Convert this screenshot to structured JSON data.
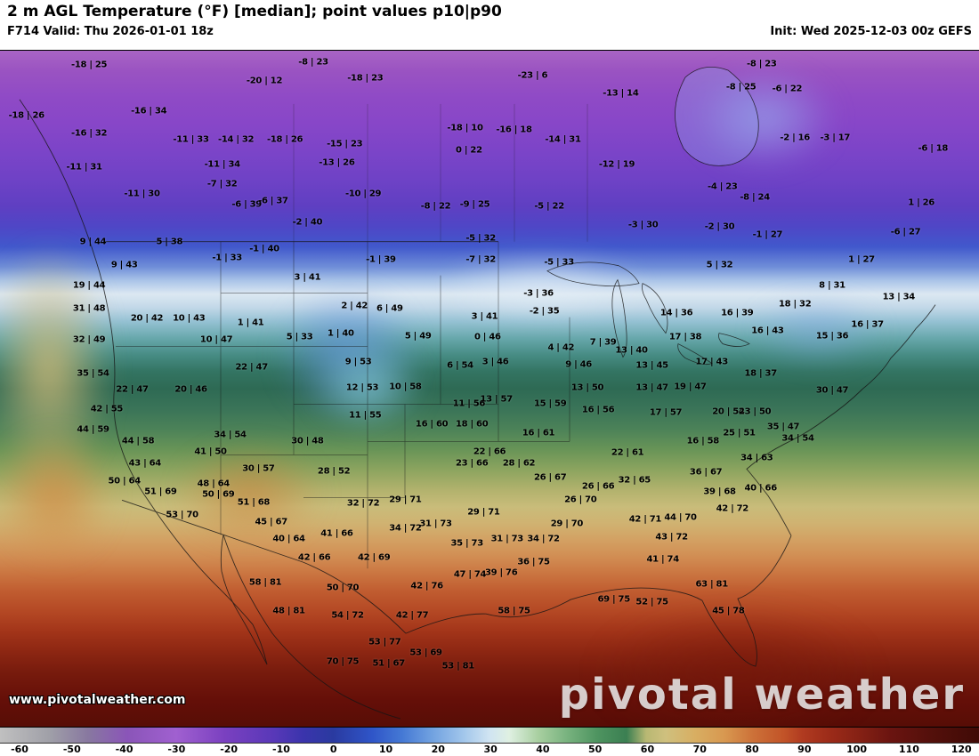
{
  "header": {
    "title": "2 m AGL Temperature (°F) [median]; point values p10|p90",
    "valid_label": "F714 Valid: Thu 2026-01-01 18z",
    "init_label": "Init: Wed 2025-12-03 00z GEFS"
  },
  "watermark": {
    "site_url": "www.pivotalweather.com",
    "brand": "pivotal weather"
  },
  "colorbar": {
    "units": "°F",
    "ticks": [
      "-60",
      "-50",
      "-40",
      "-30",
      "-20",
      "-10",
      "0",
      "10",
      "20",
      "30",
      "40",
      "50",
      "60",
      "70",
      "80",
      "90",
      "100",
      "110",
      "120"
    ],
    "stops": [
      {
        "p": 0,
        "c": "#c0c0c0"
      },
      {
        "p": 5,
        "c": "#a0a0a8"
      },
      {
        "p": 9,
        "c": "#8878a0"
      },
      {
        "p": 13,
        "c": "#8a55b8"
      },
      {
        "p": 18,
        "c": "#a060d0"
      },
      {
        "p": 23,
        "c": "#7a40c0"
      },
      {
        "p": 28,
        "c": "#5838b8"
      },
      {
        "p": 31,
        "c": "#3a34ac"
      },
      {
        "p": 34,
        "c": "#2a3aa0"
      },
      {
        "p": 38,
        "c": "#2f55c8"
      },
      {
        "p": 41,
        "c": "#4478d4"
      },
      {
        "p": 44,
        "c": "#6fa0e0"
      },
      {
        "p": 47,
        "c": "#9cc2ea"
      },
      {
        "p": 50,
        "c": "#d0e4f2"
      },
      {
        "p": 52,
        "c": "#dff0e2"
      },
      {
        "p": 55,
        "c": "#a8cfa0"
      },
      {
        "p": 58,
        "c": "#77b27e"
      },
      {
        "p": 61,
        "c": "#4e9460"
      },
      {
        "p": 64,
        "c": "#3b7f52"
      },
      {
        "p": 66,
        "c": "#b8b873"
      },
      {
        "p": 68,
        "c": "#cfc07e"
      },
      {
        "p": 71,
        "c": "#d8ae62"
      },
      {
        "p": 74,
        "c": "#d89850"
      },
      {
        "p": 77,
        "c": "#cc7038"
      },
      {
        "p": 80,
        "c": "#c25428"
      },
      {
        "p": 82,
        "c": "#b03a20"
      },
      {
        "p": 85,
        "c": "#9a2a18"
      },
      {
        "p": 88,
        "c": "#832014"
      },
      {
        "p": 91,
        "c": "#6a1410"
      },
      {
        "p": 95,
        "c": "#54100b"
      },
      {
        "p": 100,
        "c": "#400a06"
      }
    ]
  },
  "map": {
    "points": [
      [
        9.1,
        2.1,
        "-18 | 25"
      ],
      [
        32.0,
        1.7,
        "-8 | 23"
      ],
      [
        54.4,
        3.7,
        "-23 | 6"
      ],
      [
        77.8,
        2.0,
        "-8 | 23"
      ],
      [
        27.0,
        4.5,
        "-20 | 12"
      ],
      [
        37.3,
        4.1,
        "-18 | 23"
      ],
      [
        63.4,
        6.3,
        "-13 | 14"
      ],
      [
        75.7,
        5.4,
        "-8 | 25"
      ],
      [
        80.4,
        5.7,
        "-6 | 22"
      ],
      [
        2.7,
        9.6,
        "-18 | 26"
      ],
      [
        15.2,
        8.9,
        "-16 | 34"
      ],
      [
        9.1,
        12.2,
        "-16 | 32"
      ],
      [
        19.5,
        13.1,
        "-11 | 33"
      ],
      [
        24.1,
        13.1,
        "-14 | 32"
      ],
      [
        29.1,
        13.1,
        "-18 | 26"
      ],
      [
        35.2,
        13.8,
        "-15 | 23"
      ],
      [
        47.5,
        11.4,
        "-18 | 10"
      ],
      [
        52.5,
        11.7,
        "-16 | 18"
      ],
      [
        57.5,
        13.1,
        "-14 | 31"
      ],
      [
        47.9,
        14.8,
        "0 | 22"
      ],
      [
        81.2,
        12.9,
        "-2 | 16"
      ],
      [
        85.3,
        12.9,
        "-3 | 17"
      ],
      [
        95.3,
        14.5,
        "-6 | 18"
      ],
      [
        8.6,
        17.2,
        "-11 | 31"
      ],
      [
        22.7,
        16.8,
        "-11 | 34"
      ],
      [
        34.4,
        16.6,
        "-13 | 26"
      ],
      [
        63.0,
        16.8,
        "-12 | 19"
      ],
      [
        73.8,
        20.1,
        "-4 | 23"
      ],
      [
        14.5,
        21.2,
        "-11 | 30"
      ],
      [
        22.7,
        19.8,
        "-7 | 32"
      ],
      [
        37.1,
        21.2,
        "-10 | 29"
      ],
      [
        25.2,
        22.7,
        "-6 | 39"
      ],
      [
        27.9,
        22.3,
        "-6 | 37"
      ],
      [
        44.5,
        23.0,
        "-8 | 22"
      ],
      [
        48.5,
        22.7,
        "-9 | 25"
      ],
      [
        56.1,
        23.0,
        "-5 | 22"
      ],
      [
        77.1,
        21.7,
        "-8 | 24"
      ],
      [
        94.1,
        22.5,
        "1 | 26"
      ],
      [
        31.4,
        25.4,
        "-2 | 40"
      ],
      [
        49.1,
        27.7,
        "-5 | 32"
      ],
      [
        65.7,
        25.8,
        "-3 | 30"
      ],
      [
        73.5,
        26.0,
        "-2 | 30"
      ],
      [
        78.4,
        27.3,
        "-1 | 27"
      ],
      [
        92.5,
        26.9,
        "-6 | 27"
      ],
      [
        17.3,
        28.3,
        "5 | 38"
      ],
      [
        9.5,
        28.3,
        "9 | 44"
      ],
      [
        23.2,
        30.6,
        "-1 | 33"
      ],
      [
        27.0,
        29.4,
        "-1 | 40"
      ],
      [
        38.9,
        30.9,
        "-1 | 39"
      ],
      [
        49.1,
        30.9,
        "-7 | 32"
      ],
      [
        57.1,
        31.3,
        "-5 | 33"
      ],
      [
        73.5,
        31.7,
        "5 | 32"
      ],
      [
        88.0,
        30.9,
        "1 | 27"
      ],
      [
        12.7,
        31.7,
        "9 | 43"
      ],
      [
        9.1,
        34.8,
        "19 | 44"
      ],
      [
        31.4,
        33.6,
        "3 | 41"
      ],
      [
        55.0,
        35.9,
        "-3 | 36"
      ],
      [
        85.0,
        34.8,
        "8 | 31"
      ],
      [
        91.8,
        36.5,
        "13 | 34"
      ],
      [
        81.2,
        37.5,
        "18 | 32"
      ],
      [
        36.2,
        37.8,
        "2 | 42"
      ],
      [
        39.8,
        38.2,
        "6 | 49"
      ],
      [
        55.6,
        38.5,
        "-2 | 35"
      ],
      [
        69.1,
        38.8,
        "14 | 36"
      ],
      [
        75.3,
        38.8,
        "16 | 39"
      ],
      [
        9.1,
        38.2,
        "31 | 48"
      ],
      [
        15.0,
        39.6,
        "20 | 42"
      ],
      [
        19.3,
        39.6,
        "10 | 43"
      ],
      [
        25.6,
        40.2,
        "1 | 41"
      ],
      [
        30.6,
        42.4,
        "5 | 33"
      ],
      [
        34.8,
        41.8,
        "1 | 40"
      ],
      [
        49.5,
        39.4,
        "3 | 41"
      ],
      [
        9.1,
        42.8,
        "32 | 49"
      ],
      [
        22.1,
        42.8,
        "10 | 47"
      ],
      [
        36.6,
        46.1,
        "9 | 53"
      ],
      [
        42.7,
        42.2,
        "5 | 49"
      ],
      [
        49.8,
        42.4,
        "0 | 46"
      ],
      [
        57.3,
        44.0,
        "4 | 42"
      ],
      [
        61.6,
        43.1,
        "7 | 39"
      ],
      [
        64.5,
        44.4,
        "13 | 40"
      ],
      [
        70.0,
        42.4,
        "17 | 38"
      ],
      [
        78.4,
        41.5,
        "16 | 43"
      ],
      [
        85.0,
        42.2,
        "15 | 36"
      ],
      [
        88.6,
        40.5,
        "16 | 37"
      ],
      [
        77.7,
        47.7,
        "18 | 37"
      ],
      [
        9.5,
        47.7,
        "35 | 54"
      ],
      [
        25.7,
        46.8,
        "22 | 47"
      ],
      [
        13.5,
        50.1,
        "22 | 47"
      ],
      [
        19.5,
        50.1,
        "20 | 46"
      ],
      [
        37.0,
        49.9,
        "12 | 53"
      ],
      [
        41.4,
        49.7,
        "10 | 58"
      ],
      [
        47.0,
        46.6,
        "6 | 54"
      ],
      [
        50.6,
        46.0,
        "3 | 46"
      ],
      [
        59.1,
        46.4,
        "9 | 46"
      ],
      [
        60.0,
        49.9,
        "13 | 50"
      ],
      [
        66.6,
        46.6,
        "13 | 45"
      ],
      [
        66.6,
        49.9,
        "13 | 47"
      ],
      [
        70.5,
        49.7,
        "19 | 47"
      ],
      [
        72.7,
        46.1,
        "17 | 43"
      ],
      [
        85.0,
        50.3,
        "30 | 47"
      ],
      [
        10.9,
        53.0,
        "42 | 55"
      ],
      [
        9.5,
        56.0,
        "44 | 59"
      ],
      [
        14.1,
        57.8,
        "44 | 58"
      ],
      [
        23.5,
        56.9,
        "34 | 54"
      ],
      [
        31.4,
        57.8,
        "30 | 48"
      ],
      [
        37.3,
        53.9,
        "11 | 55"
      ],
      [
        47.9,
        52.3,
        "11 | 56"
      ],
      [
        50.7,
        51.6,
        "13 | 57"
      ],
      [
        56.2,
        52.3,
        "15 | 59"
      ],
      [
        61.1,
        53.2,
        "16 | 56"
      ],
      [
        68.0,
        53.6,
        "17 | 57"
      ],
      [
        74.4,
        53.4,
        "20 | 54"
      ],
      [
        77.1,
        53.4,
        "23 | 50"
      ],
      [
        75.5,
        56.6,
        "25 | 51"
      ],
      [
        81.5,
        57.4,
        "34 | 54"
      ],
      [
        80.0,
        55.6,
        "35 | 47"
      ],
      [
        44.1,
        55.3,
        "16 | 60"
      ],
      [
        48.2,
        55.3,
        "18 | 60"
      ],
      [
        55.0,
        56.6,
        "16 | 61"
      ],
      [
        14.8,
        61.1,
        "43 | 64"
      ],
      [
        21.5,
        59.3,
        "41 | 50"
      ],
      [
        26.4,
        61.8,
        "30 | 57"
      ],
      [
        34.1,
        62.2,
        "28 | 52"
      ],
      [
        50.0,
        59.3,
        "22 | 66"
      ],
      [
        48.2,
        61.1,
        "23 | 66"
      ],
      [
        53.0,
        61.1,
        "28 | 62"
      ],
      [
        64.1,
        59.5,
        "22 | 61"
      ],
      [
        56.2,
        63.2,
        "26 | 67"
      ],
      [
        61.1,
        64.5,
        "26 | 66"
      ],
      [
        64.8,
        63.5,
        "32 | 65"
      ],
      [
        71.8,
        57.8,
        "16 | 58"
      ],
      [
        77.3,
        60.2,
        "34 | 63"
      ],
      [
        72.1,
        62.4,
        "36 | 67"
      ],
      [
        12.7,
        63.7,
        "50 | 64"
      ],
      [
        21.8,
        64.1,
        "48 | 64"
      ],
      [
        16.4,
        65.2,
        "51 | 69"
      ],
      [
        22.3,
        65.7,
        "50 | 69"
      ],
      [
        77.7,
        64.8,
        "40 | 66"
      ],
      [
        73.5,
        65.2,
        "39 | 68"
      ],
      [
        18.6,
        68.7,
        "53 | 70"
      ],
      [
        25.9,
        66.8,
        "51 | 68"
      ],
      [
        37.1,
        67.0,
        "32 | 72"
      ],
      [
        41.4,
        66.5,
        "29 | 71"
      ],
      [
        49.4,
        68.3,
        "29 | 71"
      ],
      [
        44.5,
        70.0,
        "31 | 73"
      ],
      [
        27.7,
        69.8,
        "45 | 67"
      ],
      [
        41.4,
        70.7,
        "34 | 72"
      ],
      [
        59.3,
        66.5,
        "26 | 70"
      ],
      [
        57.9,
        70.0,
        "29 | 70"
      ],
      [
        65.9,
        69.4,
        "42 | 71"
      ],
      [
        69.5,
        69.1,
        "44 | 70"
      ],
      [
        74.8,
        67.7,
        "42 | 72"
      ],
      [
        29.5,
        72.3,
        "40 | 64"
      ],
      [
        34.4,
        71.4,
        "41 | 66"
      ],
      [
        32.1,
        75.0,
        "42 | 66"
      ],
      [
        38.2,
        75.0,
        "42 | 69"
      ],
      [
        47.7,
        72.9,
        "35 | 73"
      ],
      [
        51.8,
        72.3,
        "31 | 73"
      ],
      [
        55.5,
        72.3,
        "34 | 72"
      ],
      [
        54.5,
        75.7,
        "36 | 75"
      ],
      [
        51.2,
        77.3,
        "39 | 76"
      ],
      [
        68.6,
        72.0,
        "43 | 72"
      ],
      [
        67.7,
        75.3,
        "41 | 74"
      ],
      [
        35.0,
        79.5,
        "50 | 70"
      ],
      [
        43.6,
        79.2,
        "42 | 76"
      ],
      [
        48.0,
        77.5,
        "47 | 74"
      ],
      [
        27.1,
        78.7,
        "58 | 81"
      ],
      [
        29.5,
        82.9,
        "48 | 81"
      ],
      [
        35.5,
        83.6,
        "54 | 72"
      ],
      [
        52.5,
        82.9,
        "58 | 75"
      ],
      [
        66.6,
        81.6,
        "52 | 75"
      ],
      [
        62.7,
        81.2,
        "69 | 75"
      ],
      [
        72.7,
        79.0,
        "63 | 81"
      ],
      [
        74.4,
        82.9,
        "45 | 78"
      ],
      [
        42.1,
        83.6,
        "42 | 77"
      ],
      [
        39.3,
        87.5,
        "53 | 77"
      ],
      [
        39.7,
        90.7,
        "51 | 67"
      ],
      [
        43.5,
        89.1,
        "53 | 69"
      ],
      [
        46.8,
        91.1,
        "53 | 81"
      ],
      [
        35.0,
        90.4,
        "70 | 75"
      ]
    ]
  }
}
